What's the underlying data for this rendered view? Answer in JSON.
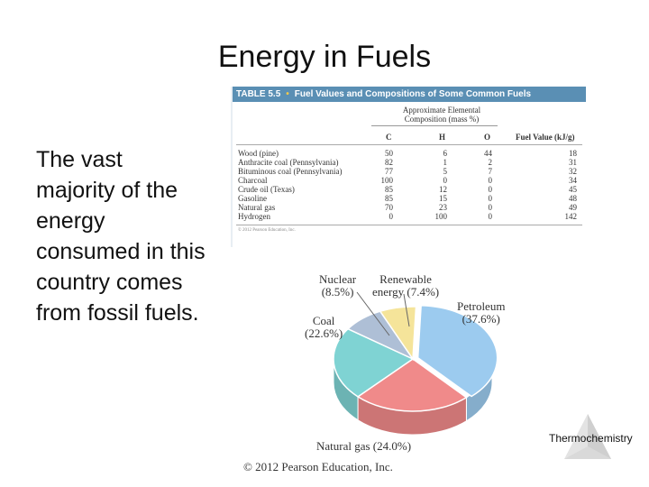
{
  "slide": {
    "title": "Energy in Fuels",
    "body": "The vast majority of the energy consumed in this country comes from fossil fuels.",
    "footer": "© 2012 Pearson Education, Inc.",
    "corner_label": "Thermochemistry"
  },
  "table": {
    "number": "TABLE 5.5",
    "separator": "•",
    "caption": "Fuel Values and Compositions of Some Common Fuels",
    "group_header": "Approximate Elemental Composition (mass %)",
    "columns": {
      "c": "C",
      "h": "H",
      "o": "O",
      "fuel_value": "Fuel Value (kJ/g)"
    },
    "rows": [
      {
        "fuel": "Wood (pine)",
        "c": "50",
        "h": "6",
        "o": "44",
        "fv": "18"
      },
      {
        "fuel": "Anthracite coal (Pennsylvania)",
        "c": "82",
        "h": "1",
        "o": "2",
        "fv": "31"
      },
      {
        "fuel": "Bituminous coal (Pennsylvania)",
        "c": "77",
        "h": "5",
        "o": "7",
        "fv": "32"
      },
      {
        "fuel": "Charcoal",
        "c": "100",
        "h": "0",
        "o": "0",
        "fv": "34"
      },
      {
        "fuel": "Crude oil (Texas)",
        "c": "85",
        "h": "12",
        "o": "0",
        "fv": "45"
      },
      {
        "fuel": "Gasoline",
        "c": "85",
        "h": "15",
        "o": "0",
        "fv": "48"
      },
      {
        "fuel": "Natural gas",
        "c": "70",
        "h": "23",
        "o": "0",
        "fv": "49"
      },
      {
        "fuel": "Hydrogen",
        "c": "0",
        "h": "100",
        "o": "0",
        "fv": "142"
      }
    ],
    "copyright": "© 2012 Pearson Education, Inc."
  },
  "chart_data": {
    "type": "pie",
    "slices": [
      {
        "name": "Petroleum",
        "label": "(37.6%)",
        "value": 37.6,
        "color": "#9ccbef"
      },
      {
        "name": "Natural gas",
        "label": "(24.0%)",
        "value": 24.0,
        "color": "#f08a8a"
      },
      {
        "name": "Coal",
        "label": "(22.6%)",
        "value": 22.6,
        "color": "#7fd3d3"
      },
      {
        "name": "Nuclear",
        "label": "(8.5%)",
        "value": 8.5,
        "color": "#aebfd6"
      },
      {
        "name": "Renewable energy",
        "label": "(7.4%)",
        "value": 7.4,
        "color": "#f5e49a"
      }
    ]
  },
  "labels": {
    "petroleum_1": "Petroleum",
    "petroleum_2": "(37.6%)",
    "natgas": "Natural gas (24.0%)",
    "coal_1": "Coal",
    "coal_2": "(22.6%)",
    "nuclear_1": "Nuclear",
    "nuclear_2": "(8.5%)",
    "renew_1": "Renewable",
    "renew_2": "energy (7.4%)"
  }
}
